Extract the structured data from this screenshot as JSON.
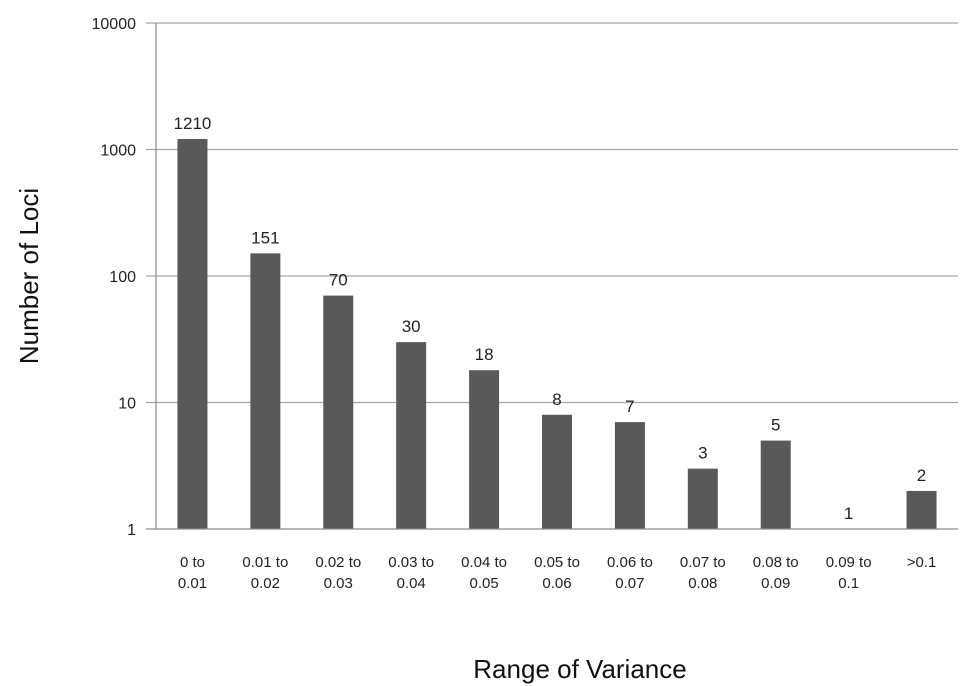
{
  "chart_data": {
    "type": "bar",
    "title": "",
    "xlabel": "Range of Variance",
    "ylabel": "Number of Loci",
    "yscale": "log",
    "ylim": [
      1,
      10000
    ],
    "yticks": [
      1,
      10,
      100,
      1000,
      10000
    ],
    "ytick_labels": [
      "1",
      "10",
      "100",
      "1000",
      "10000"
    ],
    "grid": "horizontal",
    "legend": "none",
    "categories": [
      [
        "0 to",
        "0.01"
      ],
      [
        "0.01 to",
        "0.02"
      ],
      [
        "0.02 to",
        "0.03"
      ],
      [
        "0.03 to",
        "0.04"
      ],
      [
        "0.04 to",
        "0.05"
      ],
      [
        "0.05 to",
        "0.06"
      ],
      [
        "0.06 to",
        "0.07"
      ],
      [
        "0.07 to",
        "0.08"
      ],
      [
        "0.08 to",
        "0.09"
      ],
      [
        "0.09 to",
        "0.1"
      ],
      [
        ">0.1"
      ]
    ],
    "values": [
      1210,
      151,
      70,
      30,
      18,
      8,
      7,
      3,
      5,
      1,
      2
    ],
    "data_labels": [
      "1210",
      "151",
      "70",
      "30",
      "18",
      "8",
      "7",
      "3",
      "5",
      "1",
      "2"
    ],
    "colors": {
      "bar": "#595959",
      "gridline": "#a6a6a6",
      "axis": "#8c8c8c"
    }
  }
}
